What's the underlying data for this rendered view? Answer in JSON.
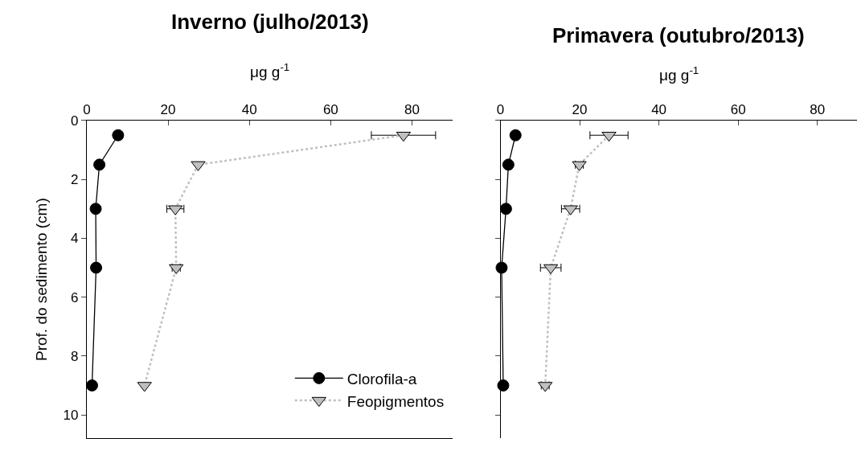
{
  "chart_data": [
    {
      "type": "line",
      "title": "Inverno (julho/2013)",
      "xlabel": "μg g$^{-1}$",
      "ylabel": "Prof. do sedimento (cm)",
      "orientation": "horizontal",
      "x": [
        0.5,
        1.5,
        3,
        5,
        9
      ],
      "xlim": [
        0,
        90
      ],
      "xticks": [
        0,
        20,
        40,
        60,
        80
      ],
      "ylim": [
        10.8,
        0
      ],
      "yticks": [
        0,
        2,
        4,
        6,
        8,
        10
      ],
      "legend": "bottom right",
      "series": [
        {
          "name": "Clorofila-a",
          "color": "#000000",
          "marker": "circle",
          "line_style": "solid",
          "values": [
            7.7,
            3.1,
            2.2,
            2.3,
            1.3
          ]
        },
        {
          "name": "Feopigmentos",
          "color": "#c0c0c0",
          "marker": "triangle",
          "line_style": "dotted",
          "values": [
            77.9,
            27.4,
            21.8,
            22.0,
            14.2
          ],
          "errors": [
            7.9,
            null,
            2.1,
            1.0,
            null
          ]
        }
      ]
    },
    {
      "type": "line",
      "title": "Primavera (outubro/2013)",
      "xlabel": "μg g$^{-1}$",
      "orientation": "horizontal",
      "x": [
        0.5,
        1.5,
        3,
        5,
        9
      ],
      "xlim": [
        0,
        90
      ],
      "xticks": [
        0,
        20,
        40,
        60,
        80
      ],
      "ylim": [
        10.8,
        0
      ],
      "yticks": [
        {
          "value": 0,
          "label": null
        },
        {
          "value": 2,
          "label": null
        },
        {
          "value": 4,
          "label": null
        },
        {
          "value": 6,
          "label": null
        },
        {
          "value": 8,
          "label": null
        },
        {
          "value": 10,
          "label": null
        }
      ],
      "tick_labels": "x",
      "series": [
        {
          "color": "#000000",
          "marker": "circle",
          "line_style": "solid",
          "values": [
            3.8,
            2.0,
            1.4,
            0.3,
            0.7
          ]
        },
        {
          "color": "#c0c0c0",
          "marker": "triangle",
          "line_style": "dotted",
          "values": [
            27.4,
            19.9,
            17.7,
            12.7,
            11.3
          ],
          "errors": [
            4.8,
            1.0,
            2.3,
            2.6,
            1.0
          ]
        }
      ]
    }
  ]
}
